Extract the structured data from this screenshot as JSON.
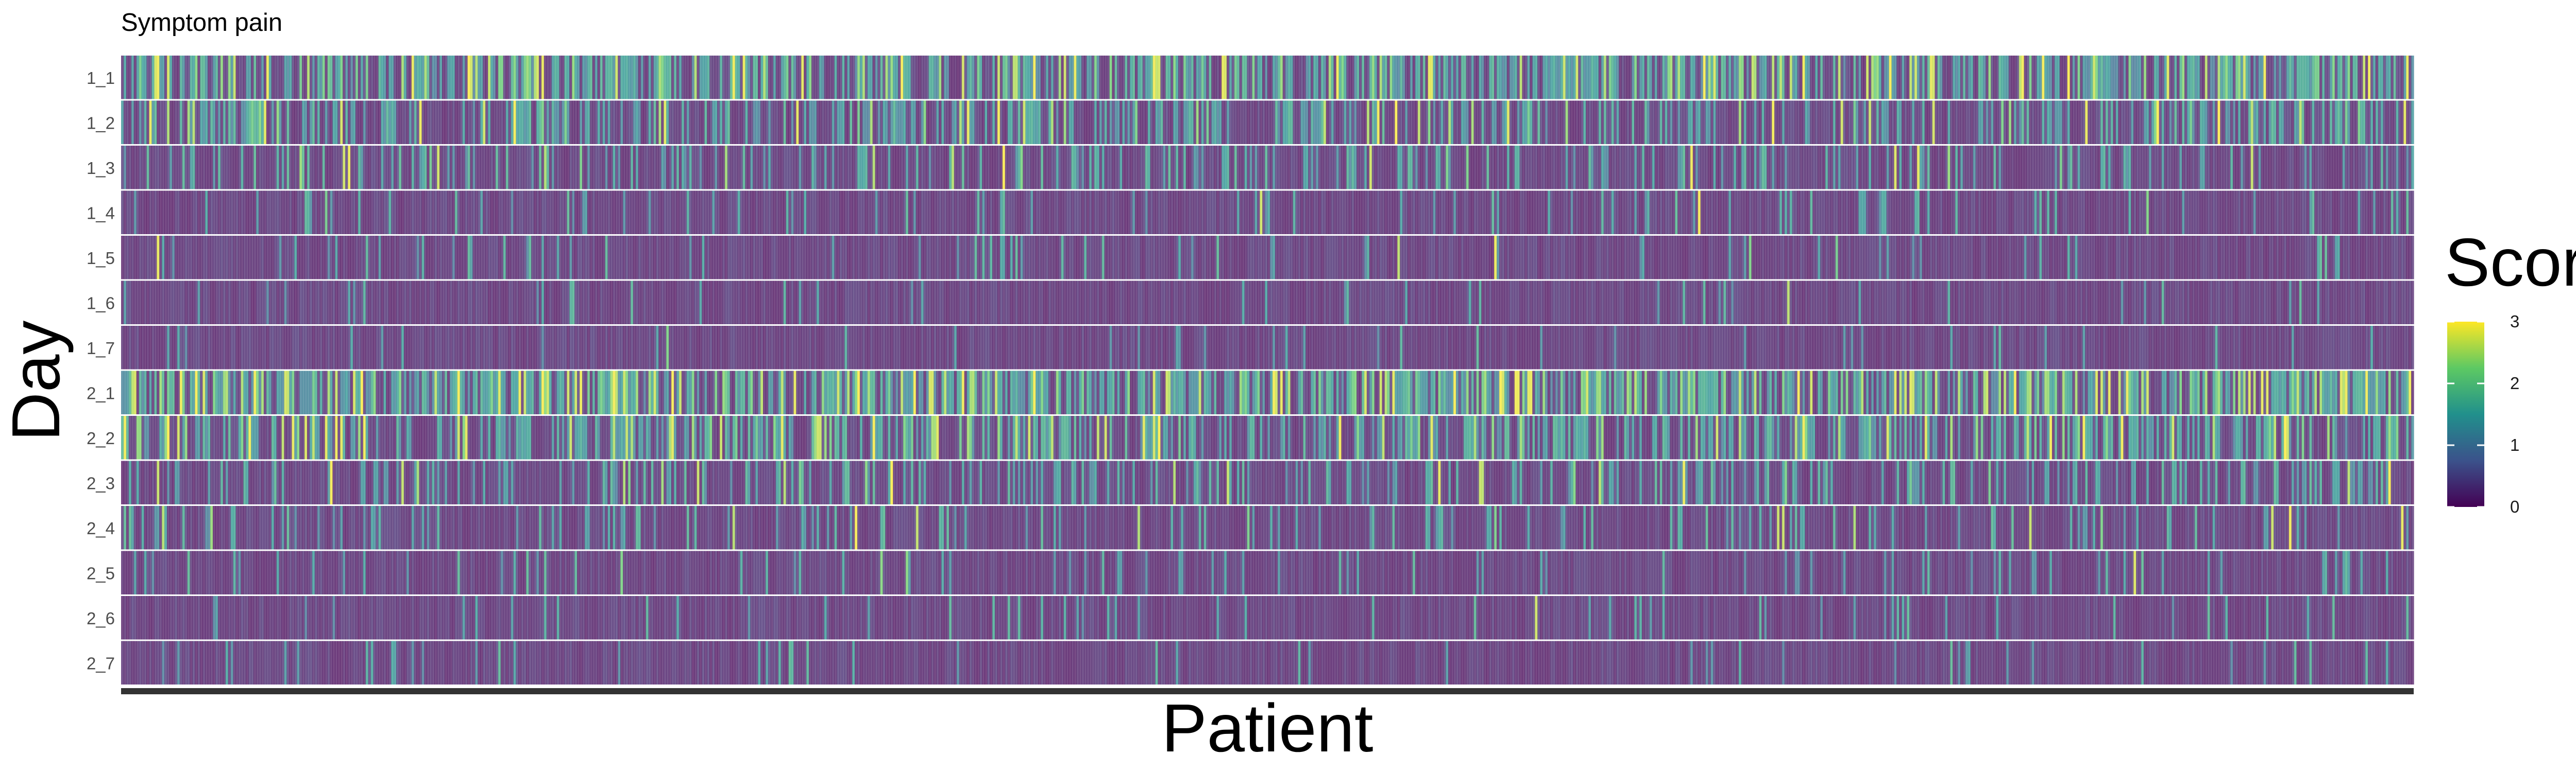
{
  "chart_data": {
    "type": "heatmap",
    "title": "Symptom pain",
    "xlabel": "Patient",
    "ylabel": "Day",
    "y_categories": [
      "1_1",
      "1_2",
      "1_3",
      "1_4",
      "1_5",
      "1_6",
      "1_7",
      "2_1",
      "2_2",
      "2_3",
      "2_4",
      "2_5",
      "2_6",
      "2_7"
    ],
    "x_tick_labels": [],
    "legend": {
      "title": "Score",
      "range": [
        0,
        3
      ],
      "ticks": [
        0,
        1,
        2,
        3
      ],
      "placement": "right"
    },
    "colorscale": "viridis",
    "colors": {
      "viridis_low": "#440154",
      "viridis_mid_low": "#31688e",
      "viridis_mid": "#35b779",
      "viridis_high": "#fde725",
      "baseline": "#333333",
      "row_separator": "#ffffff"
    },
    "row_mean_scores": [
      1.05,
      0.7,
      0.42,
      0.18,
      0.12,
      0.09,
      0.07,
      1.25,
      0.85,
      0.5,
      0.3,
      0.16,
      0.11,
      0.09
    ],
    "grid": false
  }
}
